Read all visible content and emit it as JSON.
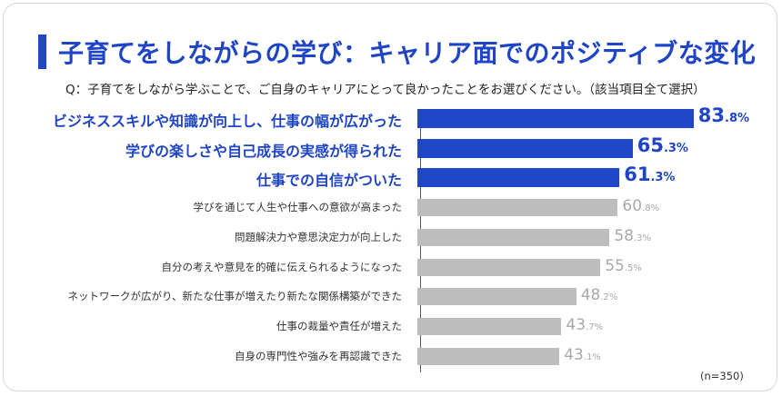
{
  "title": "子育てをしながらの学び：キャリア面でのポジティブな変化",
  "question": "Q：子育てをしながら学ぶことで、ご自身のキャリアにとって良かったことをお選びください。（該当項目全て選択）",
  "note": "(n=350)",
  "colors": {
    "accent": "#2046c8",
    "highlight_bar": "#2046c8",
    "normal_bar": "#bdbdbd",
    "highlight_text": "#1f45c6",
    "normal_value_text": "#a9a9a9"
  },
  "chart_data": {
    "type": "bar",
    "orientation": "horizontal",
    "title": "子育てをしながらの学び：キャリア面でのポジティブな変化",
    "unit": "%",
    "categories": [
      "ビジネススキルや知識が向上し、仕事の幅が広がった",
      "学びの楽しさや自己成長の実感が得られた",
      "仕事での自信がついた",
      "学びを通じて人生や仕事への意欲が高まった",
      "問題解決力や意思決定力が向上した",
      "自分の考えや意見を的確に伝えられるようになった",
      "ネットワークが広がり、新たな仕事が増えたり新たな関係構築ができた",
      "仕事の裁量や責任が増えた",
      "自身の専門性や強みを再認識できた"
    ],
    "values": [
      83.8,
      65.3,
      61.3,
      60.8,
      58.3,
      55.5,
      48.2,
      43.7,
      43.1
    ],
    "highlighted": [
      true,
      true,
      true,
      false,
      false,
      false,
      false,
      false,
      false
    ],
    "xlim": [
      0,
      100
    ],
    "grid": false
  }
}
